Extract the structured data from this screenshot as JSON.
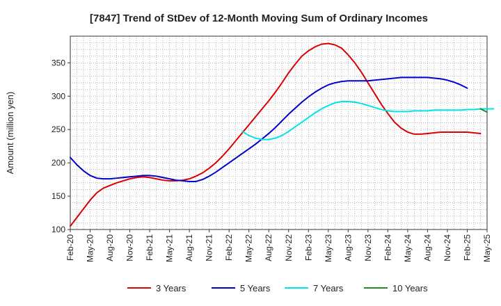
{
  "chart_data": {
    "type": "line",
    "title": "[7847]  Trend of StDev of 12-Month Moving Sum of Ordinary Incomes",
    "xlabel": "",
    "ylabel": "Amount (million yen)",
    "ylim": [
      100,
      390
    ],
    "yticks": [
      100,
      150,
      200,
      250,
      300,
      350
    ],
    "x_start": "Feb-20",
    "x_end": "May-25",
    "xtick_labels": [
      "Feb-20",
      "May-20",
      "Aug-20",
      "Nov-20",
      "Feb-21",
      "May-21",
      "Aug-21",
      "Nov-21",
      "Feb-22",
      "May-22",
      "Aug-22",
      "Nov-22",
      "Feb-23",
      "May-23",
      "Aug-23",
      "Nov-23",
      "Feb-24",
      "May-24",
      "Aug-24",
      "Nov-24",
      "Feb-25",
      "May-25"
    ],
    "grid": true,
    "legend_position": "bottom",
    "series": [
      {
        "name": "3 Years",
        "color": "#dd0000",
        "start_month_index": 0,
        "values": [
          105,
          118,
          131,
          144,
          155,
          162,
          166,
          170,
          173,
          176,
          178,
          179,
          178,
          176,
          174,
          173,
          173,
          174,
          176,
          180,
          185,
          192,
          200,
          210,
          221,
          233,
          245,
          257,
          269,
          281,
          293,
          306,
          320,
          335,
          348,
          360,
          368,
          374,
          378,
          379,
          377,
          372,
          362,
          350,
          336,
          320,
          304,
          288,
          274,
          261,
          252,
          246,
          243,
          243,
          244,
          245,
          246,
          246,
          246,
          246,
          246,
          245,
          244
        ]
      },
      {
        "name": "5 Years",
        "color": "#0000cc",
        "start_month_index": 0,
        "values": [
          208,
          197,
          188,
          181,
          177,
          176,
          176,
          177,
          178,
          179,
          180,
          181,
          181,
          180,
          178,
          176,
          174,
          173,
          172,
          172,
          175,
          180,
          186,
          193,
          200,
          207,
          214,
          221,
          228,
          236,
          244,
          253,
          263,
          273,
          282,
          291,
          299,
          306,
          312,
          317,
          320,
          322,
          323,
          323,
          323,
          323,
          324,
          325,
          326,
          327,
          328,
          328,
          328,
          328,
          328,
          327,
          326,
          324,
          321,
          317,
          312
        ]
      },
      {
        "name": "7 Years",
        "color": "#00e5e5",
        "start_month_index": 26,
        "values": [
          247,
          241,
          237,
          235,
          235,
          237,
          241,
          247,
          254,
          261,
          268,
          275,
          281,
          286,
          290,
          292,
          292,
          291,
          289,
          286,
          283,
          280,
          278,
          277,
          277,
          277,
          278,
          278,
          278,
          279,
          279,
          279,
          279,
          279,
          280,
          280,
          281,
          281,
          281
        ]
      },
      {
        "name": "10 Years",
        "color": "#228b22",
        "start_month_index": 62,
        "values": [
          281,
          276
        ]
      }
    ]
  }
}
